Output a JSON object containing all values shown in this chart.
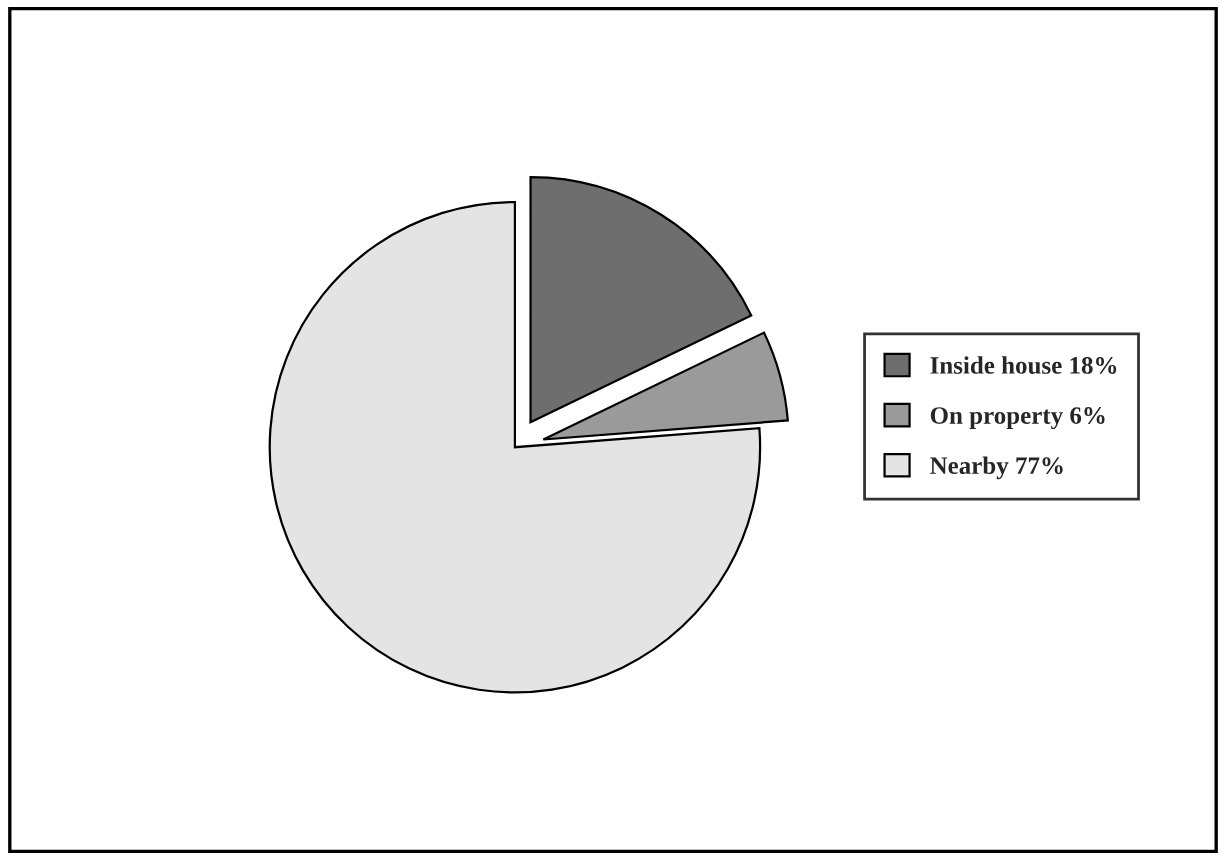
{
  "chart_data": {
    "type": "pie",
    "categories": [
      "Inside house 18%",
      "On property 6%",
      "Nearby 77%"
    ],
    "values": [
      18,
      6,
      77
    ],
    "colors": [
      "#6e6e6e",
      "#9a9a9a",
      "#e4e4e4"
    ],
    "legend": "right"
  }
}
